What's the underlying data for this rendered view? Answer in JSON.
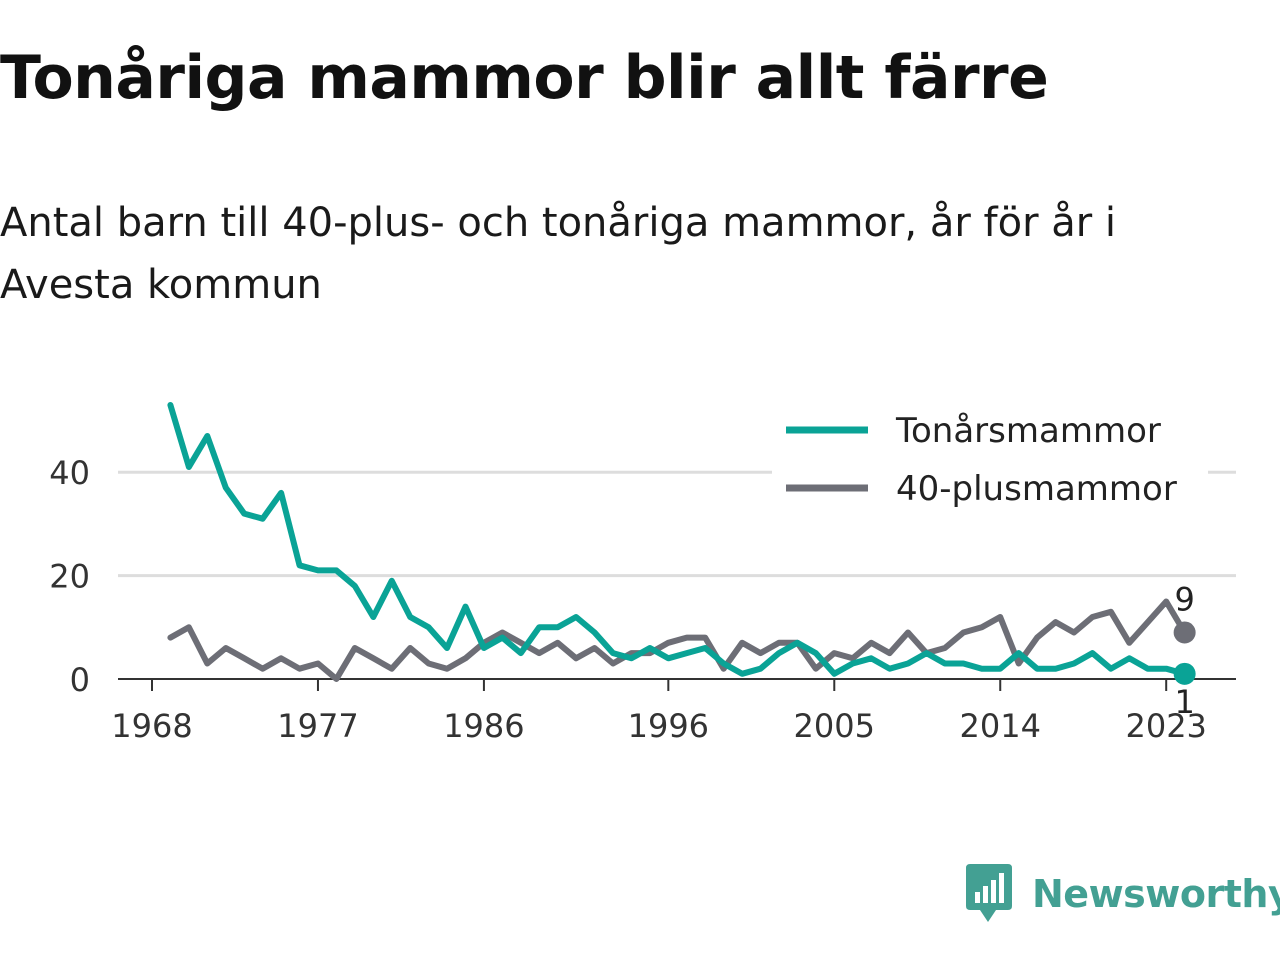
{
  "title": "Tonåriga mammor blir allt färre",
  "subtitle": "Antal barn till 40-plus- och tonåriga mammor, år för år i Avesta kommun",
  "brand": {
    "name": "Newsworthy",
    "color": "#43a093",
    "icon": "newsworthy-logo-icon"
  },
  "colors": {
    "teens": "#0aa396",
    "over40": "#6d6e76",
    "grid": "#dddddd",
    "axis": "#333333"
  },
  "chart_data": {
    "type": "line",
    "x": [
      1969,
      1970,
      1971,
      1972,
      1973,
      1974,
      1975,
      1976,
      1977,
      1978,
      1979,
      1980,
      1981,
      1982,
      1983,
      1984,
      1985,
      1986,
      1987,
      1988,
      1989,
      1990,
      1991,
      1992,
      1993,
      1994,
      1995,
      1996,
      1997,
      1998,
      1999,
      2000,
      2001,
      2002,
      2003,
      2004,
      2005,
      2006,
      2007,
      2008,
      2009,
      2010,
      2011,
      2012,
      2013,
      2014,
      2015,
      2016,
      2017,
      2018,
      2019,
      2020,
      2021,
      2022,
      2023,
      2024
    ],
    "series": [
      {
        "name": "Tonårsmammor",
        "color": "#0aa396",
        "values": [
          53,
          41,
          47,
          37,
          32,
          31,
          36,
          22,
          21,
          21,
          18,
          12,
          19,
          12,
          10,
          6,
          14,
          6,
          8,
          5,
          10,
          10,
          12,
          9,
          5,
          4,
          6,
          4,
          5,
          6,
          3,
          1,
          2,
          5,
          7,
          5,
          1,
          3,
          4,
          2,
          3,
          5,
          3,
          3,
          2,
          2,
          5,
          2,
          2,
          3,
          5,
          2,
          4,
          2,
          2,
          1
        ],
        "end_label": "1"
      },
      {
        "name": "40-plusmammor",
        "color": "#6d6e76",
        "values": [
          8,
          10,
          3,
          6,
          4,
          2,
          4,
          2,
          3,
          0,
          6,
          4,
          2,
          6,
          3,
          2,
          4,
          7,
          9,
          7,
          5,
          7,
          4,
          6,
          3,
          5,
          5,
          7,
          8,
          8,
          2,
          7,
          5,
          7,
          7,
          2,
          5,
          4,
          7,
          5,
          9,
          5,
          6,
          9,
          10,
          12,
          3,
          8,
          11,
          9,
          12,
          13,
          7,
          11,
          15,
          9
        ],
        "end_label": "9"
      }
    ],
    "x_ticks": [
      "1968",
      "1977",
      "1986",
      "1996",
      "2005",
      "2014",
      "2023"
    ],
    "x_tick_values": [
      1968,
      1977,
      1986,
      1996,
      2005,
      2014,
      2023
    ],
    "y_ticks": [
      "0",
      "20",
      "40"
    ],
    "y_tick_values": [
      0,
      20,
      40
    ],
    "xlim": [
      1968,
      2024
    ],
    "ylim": [
      0,
      53
    ],
    "legend_placement": "top-right",
    "grid": true
  }
}
